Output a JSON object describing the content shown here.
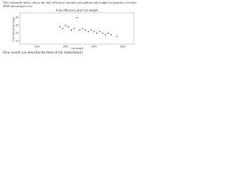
{
  "intro": "The scatterplot below shows the fuel efficiency (in miles per gallon) and weight (in pounds) of twenty 2009 subcompact cars.",
  "question": "How would you describe the form of the relationship?",
  "chart_data": {
    "type": "scatter",
    "title": "Fuel efficiency and Car weight",
    "x_label": "Car weight",
    "y_label": "Fuel efficiency (mpg)",
    "x": [
      2400,
      2450,
      2500,
      2550,
      2600,
      2650,
      2700,
      2750,
      2800,
      2850,
      2900,
      2950,
      3000,
      3050,
      3100,
      3150,
      3200,
      3250,
      3300,
      3400
    ],
    "y": [
      29,
      28,
      30,
      29,
      27,
      28,
      35,
      27,
      28,
      27,
      26,
      27,
      26,
      25,
      26,
      25,
      24,
      25,
      24,
      23
    ],
    "color": "#555555",
    "xlim": [
      1700,
      3700
    ],
    "xticks": [
      2000,
      2500,
      3000,
      3500
    ],
    "ylim": [
      18,
      38
    ],
    "yticks": [
      20,
      25,
      30,
      35
    ]
  }
}
